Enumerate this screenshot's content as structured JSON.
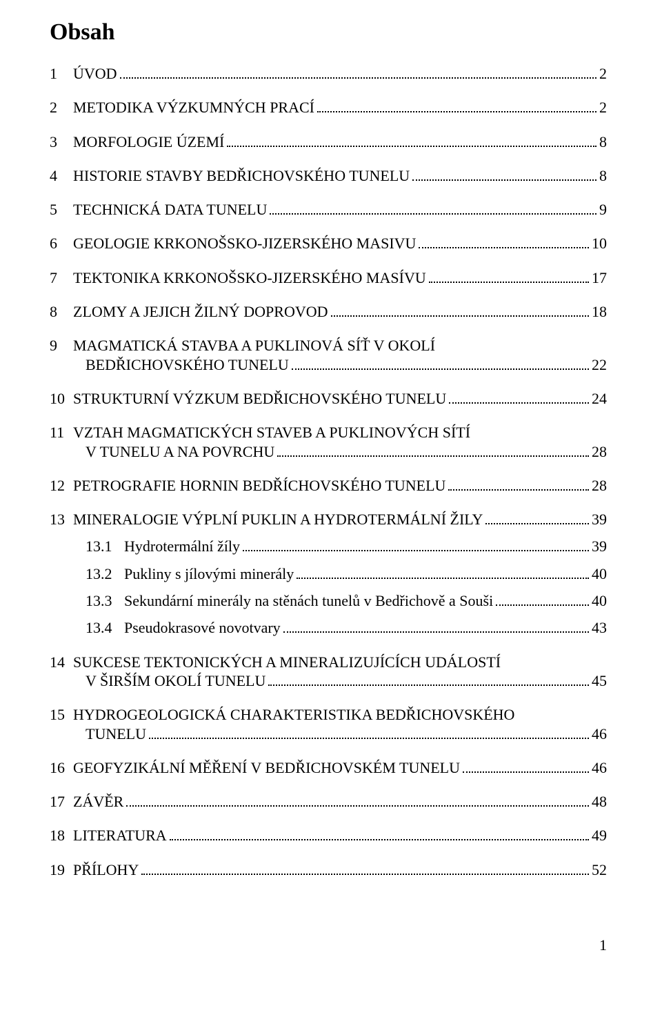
{
  "title": "Obsah",
  "text_color": "#000000",
  "background_color": "#ffffff",
  "font_family": "Times New Roman",
  "title_fontsize": 34,
  "body_fontsize": 22,
  "entries": {
    "e1": {
      "num": "1",
      "label": "ÚVOD",
      "page": "2"
    },
    "e2": {
      "num": "2",
      "label": "METODIKA VÝZKUMNÝCH PRACÍ",
      "page": "2"
    },
    "e3": {
      "num": "3",
      "label": "MORFOLOGIE ÚZEMÍ",
      "page": "8"
    },
    "e4": {
      "num": "4",
      "label": "HISTORIE STAVBY BEDŘICHOVSKÉHO TUNELU",
      "page": "8"
    },
    "e5": {
      "num": "5",
      "label": "TECHNICKÁ DATA TUNELU",
      "page": "9"
    },
    "e6": {
      "num": "6",
      "label": "GEOLOGIE KRKONOŠSKO-JIZERSKÉHO MASIVU",
      "page": "10"
    },
    "e7": {
      "num": "7",
      "label": "TEKTONIKA KRKONOŠSKO-JIZERSKÉHO MASÍVU",
      "page": "17"
    },
    "e8": {
      "num": "8",
      "label": "ZLOMY A JEJICH ŽILNÝ DOPROVOD",
      "page": "18"
    },
    "e9": {
      "num": "9",
      "label_line1": "MAGMATICKÁ STAVBA A PUKLINOVÁ SÍŤ V OKOLÍ",
      "label_line2": "BEDŘICHOVSKÉHO TUNELU",
      "page": "22"
    },
    "e10": {
      "num": "10",
      "label": "STRUKTURNÍ VÝZKUM BEDŘICHOVSKÉHO TUNELU",
      "page": "24"
    },
    "e11": {
      "num": "11",
      "label_line1": "VZTAH MAGMATICKÝCH STAVEB A PUKLINOVÝCH SÍTÍ",
      "label_line2": "V TUNELU A NA POVRCHU",
      "page": "28"
    },
    "e12": {
      "num": "12",
      "label": "PETROGRAFIE HORNIN BEDŘÍCHOVSKÉHO TUNELU",
      "page": "28"
    },
    "e13": {
      "num": "13",
      "label": "MINERALOGIE VÝPLNÍ PUKLIN A HYDROTERMÁLNÍ ŽILY",
      "page": "39"
    },
    "e13_1": {
      "num": "13.1",
      "label": "Hydrotermální žíly",
      "page": "39"
    },
    "e13_2": {
      "num": "13.2",
      "label": "Pukliny s jílovými minerály",
      "page": "40"
    },
    "e13_3": {
      "num": "13.3",
      "label": "Sekundární minerály na stěnách tunelů v Bedřichově a Souši",
      "page": "40"
    },
    "e13_4": {
      "num": "13.4",
      "label": "Pseudokrasové novotvary",
      "page": "43"
    },
    "e14": {
      "num": "14",
      "label_line1": "SUKCESE TEKTONICKÝCH A MINERALIZUJÍCÍCH UDÁLOSTÍ",
      "label_line2": "V ŠIRŠÍM OKOLÍ TUNELU",
      "page": "45"
    },
    "e15": {
      "num": "15",
      "label_line1": "HYDROGEOLOGICKÁ CHARAKTERISTIKA BEDŘICHOVSKÉHO",
      "label_line2": "TUNELU",
      "page": "46"
    },
    "e16": {
      "num": "16",
      "label": "GEOFYZIKÁLNÍ MĚŘENÍ V BEDŘICHOVSKÉM TUNELU",
      "page": "46"
    },
    "e17": {
      "num": "17",
      "label": "ZÁVĚR",
      "page": "48"
    },
    "e18": {
      "num": "18",
      "label": "LITERATURA",
      "page": "49"
    },
    "e19": {
      "num": "19",
      "label": "PŘÍLOHY",
      "page": "52"
    }
  },
  "footer_page_number": "1"
}
